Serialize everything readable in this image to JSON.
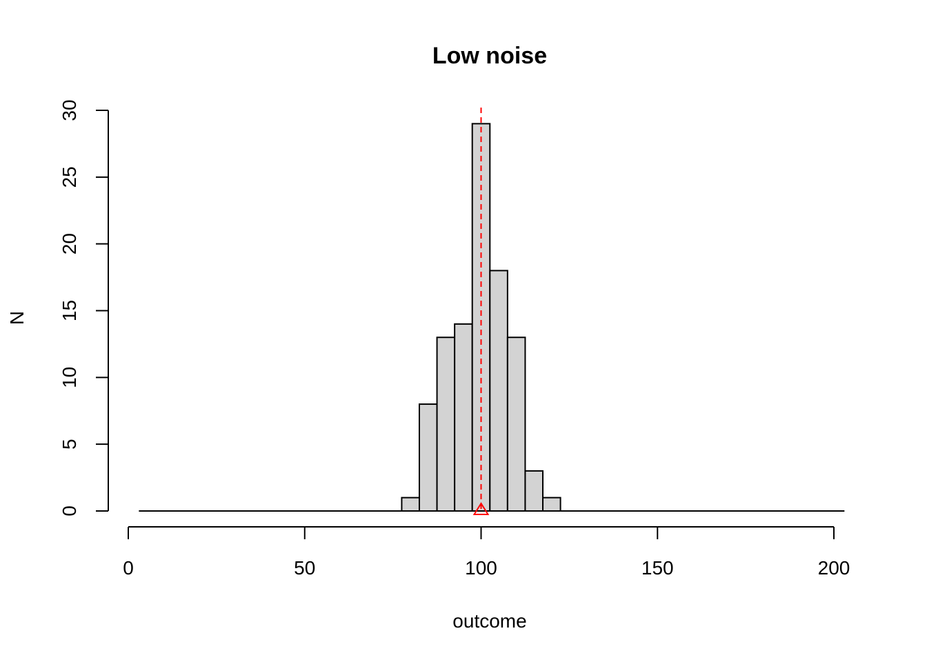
{
  "chart_data": {
    "type": "bar",
    "title": "Low noise",
    "xlabel": "outcome",
    "ylabel": "N",
    "xlim": [
      0,
      200
    ],
    "ylim": [
      0,
      30
    ],
    "x_ticks": [
      0,
      50,
      100,
      150,
      200
    ],
    "y_ticks": [
      0,
      5,
      10,
      15,
      20,
      25,
      30
    ],
    "bins": [
      {
        "start": 77.5,
        "end": 82.5,
        "count": 1
      },
      {
        "start": 82.5,
        "end": 87.5,
        "count": 8
      },
      {
        "start": 87.5,
        "end": 92.5,
        "count": 13
      },
      {
        "start": 92.5,
        "end": 97.5,
        "count": 14
      },
      {
        "start": 97.5,
        "end": 102.5,
        "count": 29
      },
      {
        "start": 102.5,
        "end": 107.5,
        "count": 18
      },
      {
        "start": 107.5,
        "end": 112.5,
        "count": 13
      },
      {
        "start": 112.5,
        "end": 117.5,
        "count": 3
      },
      {
        "start": 117.5,
        "end": 122.5,
        "count": 1
      }
    ],
    "baseline_range": [
      3,
      203
    ],
    "reference_line": {
      "x": 100,
      "style": "dashed",
      "color": "#ff0000"
    },
    "reference_marker": {
      "x": 100,
      "y": 0,
      "shape": "triangle",
      "color": "#ff0000"
    },
    "bar_color": "#d3d3d3",
    "grid": false,
    "legend": "none"
  }
}
